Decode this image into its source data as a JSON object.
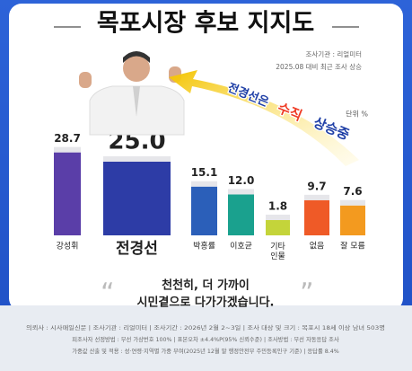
{
  "chart_data": {
    "type": "bar",
    "title": "목포시장 후보 지지도",
    "notes": [
      "조사기관 : 리얼미터",
      "2025.08 대비 최근 조사 상승"
    ],
    "unit": "단위 %",
    "annotation": [
      "전경선은",
      "수직",
      "상승중"
    ],
    "quote": [
      "천천히, 더 가까이",
      "시민곁으로 다가가겠습니다."
    ],
    "categories": [
      "강성휘",
      "전경선",
      "박홍률",
      "이호균",
      "기타 인물",
      "없음",
      "잘 모름"
    ],
    "values": [
      28.7,
      25.0,
      15.1,
      12.0,
      1.8,
      9.7,
      7.6
    ],
    "value_labels": [
      "28.7",
      "25.0",
      "15.1",
      "12.0",
      "1.8",
      "9.7",
      "7.6"
    ],
    "colors": [
      "#5a3ea8",
      "#2d3ca6",
      "#2b5fb9",
      "#1aa18e",
      "#c4d43a",
      "#ef5a27",
      "#f39a1f"
    ],
    "footer": [
      "의뢰사 : 시사매일신문 | 조사기관 : 리얼미터 | 조사기간 : 2026년 2월 2~3일 | 조사 대상 및 크기 : 목포시 18세 이상 남녀 503명",
      "피조사자 선정방법 : 무선 가상번호 100% | 표본오차 ±4.4%P(95% 신뢰수준) | 조사방법 : 무선 자동응답 조사",
      "가중값 산출 및 적용 : 성·연령·지역별 가중 부여(2025년 12월 말 행정안전부 주민등록인구 기준) | 응답률 8.4%"
    ]
  }
}
